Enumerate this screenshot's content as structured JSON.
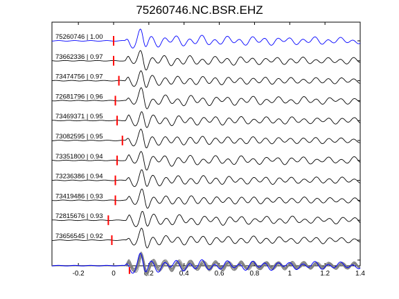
{
  "chart_data": {
    "type": "line",
    "title": "75260746.NC.BSR.EHZ",
    "xlim": [
      -0.35,
      1.4
    ],
    "xticks": [
      -0.2,
      0,
      0.2,
      0.4,
      0.6,
      0.8,
      1,
      1.2,
      1.4
    ],
    "xtick_labels": [
      "-0.2",
      "0",
      "0.2",
      "0.4",
      "0.6",
      "0.8",
      "1",
      "1.2",
      "1.4"
    ],
    "grid": false,
    "legend": "none",
    "colors": {
      "reference": "#0000ff",
      "trace": "#000000",
      "pick": "#ff0000",
      "stack": "#808080"
    },
    "traces": [
      {
        "label": "75260746 | 1.00",
        "pick_time": 0.0,
        "reference": true
      },
      {
        "label": "73662336 | 0.97",
        "pick_time": 0.0
      },
      {
        "label": "73474756 | 0.97",
        "pick_time": 0.03
      },
      {
        "label": "72681796 | 0.96",
        "pick_time": 0.01
      },
      {
        "label": "73469371 | 0.95",
        "pick_time": 0.02
      },
      {
        "label": "73082595 | 0.95",
        "pick_time": 0.05
      },
      {
        "label": "73351800 | 0.94",
        "pick_time": 0.02
      },
      {
        "label": "73236386 | 0.94",
        "pick_time": 0.01
      },
      {
        "label": "73419486 | 0.93",
        "pick_time": 0.01
      },
      {
        "label": "72815676 | 0.93",
        "pick_time": -0.03
      },
      {
        "label": "73656545 | 0.92",
        "pick_time": -0.01
      }
    ],
    "stack_pick_time": 0.09
  }
}
